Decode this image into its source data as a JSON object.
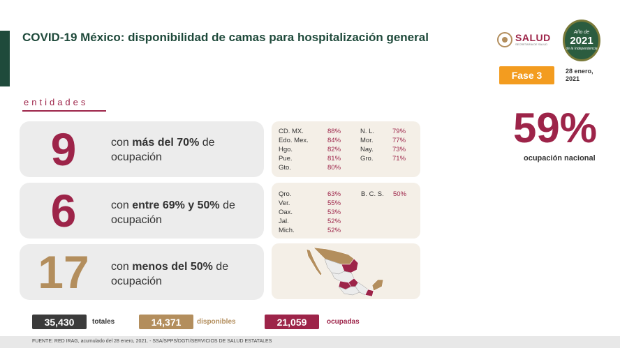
{
  "header": {
    "title": "COVID-19 México: disponibilidad de camas para hospitalización general",
    "salud_logo_text": "SALUD",
    "salud_logo_subtext": "SECRETARÍA DE SALUD",
    "seal_top": "Año de",
    "seal_year": "2021",
    "seal_sub": "de la Independencia",
    "phase_label": "Fase 3",
    "date": "28 enero, 2021"
  },
  "section_label": "entidades",
  "rows": [
    {
      "count": "9",
      "color": "#9d2449",
      "text_pre": "con ",
      "text_bold": "más del 70%",
      "text_post": " de ocupación",
      "states_left": [
        {
          "name": "CD. MX.",
          "value": "88%"
        },
        {
          "name": "Edo. Mex.",
          "value": "84%"
        },
        {
          "name": "Hgo.",
          "value": "82%"
        },
        {
          "name": "Pue.",
          "value": "81%"
        },
        {
          "name": "Gto.",
          "value": "80%"
        }
      ],
      "states_right": [
        {
          "name": "N. L.",
          "value": "79%"
        },
        {
          "name": "Mor.",
          "value": "77%"
        },
        {
          "name": "Nay.",
          "value": "73%"
        },
        {
          "name": "Gro.",
          "value": "71%"
        }
      ]
    },
    {
      "count": "6",
      "color": "#9d2449",
      "text_pre": "con ",
      "text_bold": "entre 69% y 50%",
      "text_post": " de ocupación",
      "states_left": [
        {
          "name": "Qro.",
          "value": "63%"
        },
        {
          "name": "Ver.",
          "value": "55%"
        },
        {
          "name": "Oax.",
          "value": "53%"
        },
        {
          "name": "Jal.",
          "value": "52%"
        },
        {
          "name": "Mich.",
          "value": "52%"
        }
      ],
      "states_right": [
        {
          "name": "B. C. S.",
          "value": "50%"
        }
      ]
    },
    {
      "count": "17",
      "color": "#b38e5d",
      "text_pre": "con ",
      "text_bold": "menos del 50%",
      "text_post": " de ocupación"
    }
  ],
  "national": {
    "percent": "59%",
    "label": "ocupación nacional"
  },
  "totals": [
    {
      "value": "35,430",
      "label": "totales",
      "color": "#3b3b3b",
      "label_color": "#333333"
    },
    {
      "value": "14,371",
      "label": "disponibles",
      "color": "#b38e5d",
      "label_color": "#b38e5d"
    },
    {
      "value": "21,059",
      "label": "ocupadas",
      "color": "#9d2449",
      "label_color": "#9d2449"
    }
  ],
  "footer": "FUENTE: RED IRAG, acumulado del 28 enero, 2021. -  SSA/SPPS/DGTI/SERVICIOS DE SALUD ESTATALES",
  "colors": {
    "primary_green": "#1f4a3b",
    "accent_red": "#9d2449",
    "accent_gold": "#b38e5d",
    "phase_orange": "#f39c1f"
  }
}
